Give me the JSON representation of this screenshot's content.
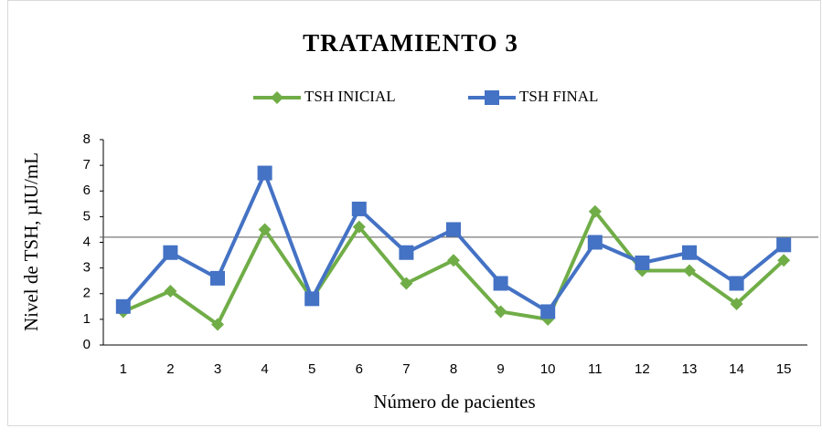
{
  "chart_data": {
    "type": "line",
    "title": "TRATAMIENTO 3",
    "x_label": "Número de pacientes",
    "y_label": "Nivel de TSH, µIU/mL",
    "categories": [
      "1",
      "2",
      "3",
      "4",
      "5",
      "6",
      "7",
      "8",
      "9",
      "10",
      "11",
      "12",
      "13",
      "14",
      "15"
    ],
    "series": [
      {
        "name": "TSH INICIAL",
        "color": "#70ad47",
        "marker": "diamond",
        "values": [
          1.3,
          2.1,
          0.8,
          4.5,
          1.8,
          4.6,
          2.4,
          3.3,
          1.3,
          1.0,
          5.2,
          2.9,
          2.9,
          1.6,
          3.3
        ]
      },
      {
        "name": "TSH FINAL",
        "color": "#4472c4",
        "marker": "square",
        "values": [
          1.5,
          3.6,
          2.6,
          6.7,
          1.8,
          5.3,
          3.6,
          4.5,
          2.4,
          1.3,
          4.0,
          3.2,
          3.6,
          2.4,
          3.9
        ]
      }
    ],
    "reference_line": 4.2,
    "ylim": [
      0,
      8
    ],
    "yticks": [
      0,
      1,
      2,
      3,
      4,
      5,
      6,
      7,
      8
    ],
    "legend": "top",
    "grid": false
  }
}
